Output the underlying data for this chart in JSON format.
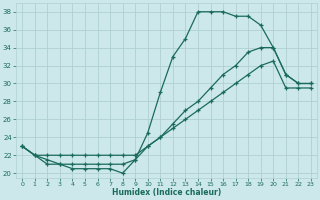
{
  "xlabel": "Humidex (Indice chaleur)",
  "ylabel": "",
  "xlim": [
    -0.5,
    23.5
  ],
  "ylim": [
    19.5,
    39
  ],
  "yticks": [
    20,
    22,
    24,
    26,
    28,
    30,
    32,
    34,
    36,
    38
  ],
  "xticks": [
    0,
    1,
    2,
    3,
    4,
    5,
    6,
    7,
    8,
    9,
    10,
    11,
    12,
    13,
    14,
    15,
    16,
    17,
    18,
    19,
    20,
    21,
    22,
    23
  ],
  "bg_color": "#cce8ea",
  "grid_color": "#b0d0d2",
  "line_color": "#1a6b5a",
  "line1_x": [
    0,
    1,
    2,
    3,
    4,
    5,
    6,
    7,
    8,
    9,
    10,
    11,
    12,
    13,
    14,
    15,
    16,
    17,
    18,
    19,
    20,
    21,
    22,
    23
  ],
  "line1_y": [
    23,
    22,
    21,
    21,
    20.5,
    20.5,
    20.5,
    20.5,
    20,
    21.5,
    24.5,
    29,
    33,
    35,
    38,
    38,
    38,
    37.5,
    37.5,
    36.5,
    34,
    31,
    30,
    30
  ],
  "line2_x": [
    0,
    1,
    2,
    3,
    4,
    5,
    6,
    7,
    8,
    9,
    10,
    11,
    12,
    13,
    14,
    15,
    16,
    17,
    18,
    19,
    20,
    21,
    22,
    23
  ],
  "line2_y": [
    23,
    22,
    21.5,
    21,
    21,
    21,
    21,
    21,
    21,
    21.5,
    23,
    24,
    25.5,
    27,
    28,
    29.5,
    31,
    32,
    33.5,
    34,
    34,
    31,
    30,
    30
  ],
  "line3_x": [
    0,
    1,
    2,
    3,
    4,
    5,
    6,
    7,
    8,
    9,
    10,
    11,
    12,
    13,
    14,
    15,
    16,
    17,
    18,
    19,
    20,
    21,
    22,
    23
  ],
  "line3_y": [
    23,
    22,
    22,
    22,
    22,
    22,
    22,
    22,
    22,
    22,
    23,
    24,
    25,
    26,
    27,
    28,
    29,
    30,
    31,
    32,
    32.5,
    29.5,
    29.5,
    29.5
  ]
}
